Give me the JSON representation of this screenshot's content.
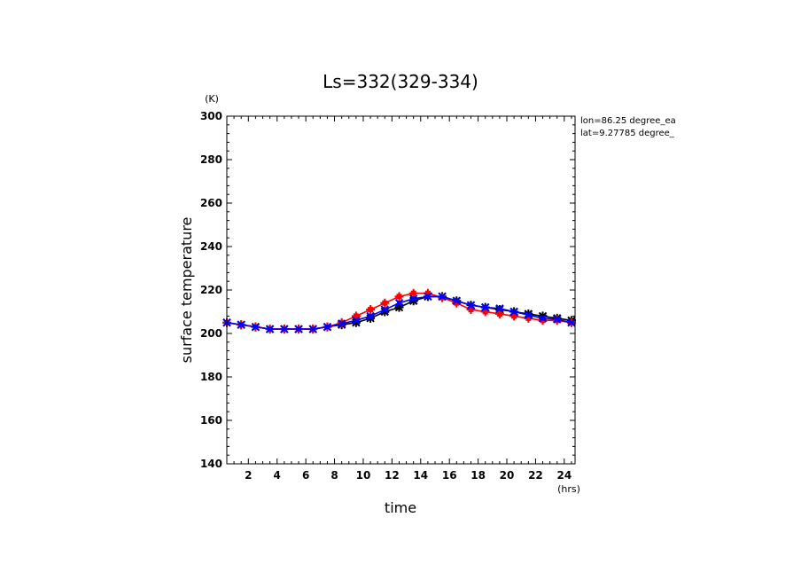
{
  "chart_data": {
    "type": "line",
    "title": "Ls=332(329-334)",
    "xlabel": "time",
    "ylabel": "surface temperature",
    "x_unit": "(hrs)",
    "y_unit": "(K)",
    "annotations": [
      "lon=86.25 degree_ea",
      "lat=9.27785 degree_"
    ],
    "xlim": [
      0.5,
      24.75
    ],
    "ylim": [
      140,
      300
    ],
    "x_ticks": [
      2,
      4,
      6,
      8,
      10,
      12,
      14,
      16,
      18,
      20,
      22,
      24
    ],
    "y_ticks": [
      140,
      160,
      180,
      200,
      220,
      240,
      260,
      280,
      300
    ],
    "x": [
      0.5,
      1.5,
      2.5,
      3.5,
      4.5,
      5.5,
      6.5,
      7.5,
      8.5,
      9.5,
      10.5,
      11.5,
      12.5,
      13.5,
      14.5,
      15.5,
      16.5,
      17.5,
      18.5,
      19.5,
      20.5,
      21.5,
      22.5,
      23.5,
      24.5
    ],
    "series": [
      {
        "color": "#000000",
        "marker": "star",
        "values": [
          205,
          204,
          203,
          202,
          202,
          202,
          202,
          203,
          204,
          205,
          207,
          210,
          212,
          215,
          217,
          217,
          215,
          213,
          212,
          211,
          210,
          209,
          208,
          207,
          206
        ]
      },
      {
        "color": "#ff0000",
        "marker": "plus",
        "values": [
          205,
          204,
          203,
          202,
          202,
          202,
          202,
          203,
          205,
          208,
          211,
          214,
          217,
          218.5,
          218.5,
          216.5,
          214,
          211,
          210,
          209,
          208,
          207,
          206,
          206,
          205
        ]
      },
      {
        "color": "#0000ff",
        "marker": "x",
        "values": [
          205,
          204,
          203,
          202,
          202,
          202,
          202,
          203,
          204.5,
          206,
          208,
          211,
          214,
          216,
          217,
          217,
          215,
          213,
          212,
          211.5,
          210,
          208.5,
          207,
          206.5,
          205
        ]
      }
    ]
  }
}
